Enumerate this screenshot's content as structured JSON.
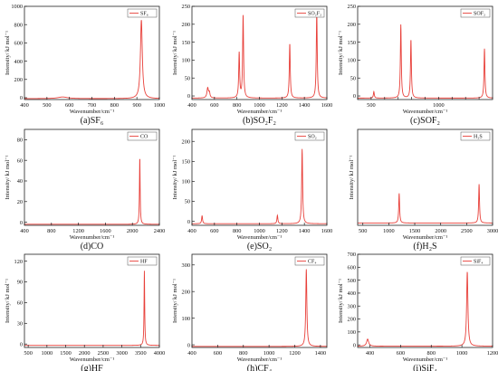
{
  "figure": {
    "xlabel": "Wavenumber/cm⁻¹",
    "ylabel": "Intensity/ kJ mol⁻¹",
    "line_color": "#e8403a",
    "axis_color": "#222222"
  },
  "chart_data": [
    {
      "type": "line",
      "panel": "(a)",
      "caption": "(a)SF₆",
      "legend": "SF₆",
      "xlim": [
        400,
        1000
      ],
      "xticks": [
        400,
        500,
        600,
        700,
        800,
        900,
        1000
      ],
      "ylim": [
        -20,
        1000
      ],
      "yticks": [
        0,
        200,
        400,
        600,
        800,
        1000
      ],
      "baseline": -10,
      "peaks": [
        {
          "x": 570,
          "y": 18,
          "w": 26
        },
        {
          "x": 920,
          "y": 860,
          "w": 5
        }
      ]
    },
    {
      "type": "line",
      "panel": "(b)",
      "caption": "(b)SO₂F₂",
      "legend": "SO₂F₂",
      "xlim": [
        400,
        1600
      ],
      "xticks": [
        400,
        600,
        800,
        1000,
        1200,
        1400,
        1600
      ],
      "ylim": [
        -10,
        250
      ],
      "yticks": [
        0,
        50,
        100,
        150,
        200,
        250
      ],
      "baseline": -6,
      "peaks": [
        {
          "x": 540,
          "y": 28,
          "w": 8
        },
        {
          "x": 555,
          "y": 14,
          "w": 6
        },
        {
          "x": 820,
          "y": 125,
          "w": 5
        },
        {
          "x": 855,
          "y": 230,
          "w": 5
        },
        {
          "x": 1270,
          "y": 152,
          "w": 5
        },
        {
          "x": 1510,
          "y": 242,
          "w": 5
        }
      ]
    },
    {
      "type": "line",
      "panel": "(c)",
      "caption": "(c)SOF₂",
      "legend": "SOF₂",
      "xlim": [
        400,
        1400
      ],
      "xticks": [
        400,
        500,
        600,
        700,
        800,
        900,
        1000,
        1100,
        1200,
        1300,
        1400
      ],
      "xtick_labels": [
        "",
        "500",
        "",
        "",
        "",
        "",
        "1000",
        "",
        "",
        "",
        ""
      ],
      "ylim": [
        -10,
        250
      ],
      "yticks": [
        0,
        50,
        100,
        150,
        200,
        250
      ],
      "baseline": -6,
      "peaks": [
        {
          "x": 520,
          "y": 18,
          "w": 4
        },
        {
          "x": 720,
          "y": 205,
          "w": 4
        },
        {
          "x": 795,
          "y": 163,
          "w": 4
        },
        {
          "x": 1340,
          "y": 138,
          "w": 4
        }
      ]
    },
    {
      "type": "line",
      "panel": "(d)",
      "caption": "(d)CO",
      "legend": "CO",
      "xlim": [
        400,
        2400
      ],
      "xticks": [
        400,
        800,
        1200,
        1600,
        2000,
        2400
      ],
      "ylim": [
        -3,
        90
      ],
      "yticks": [
        0,
        20,
        40,
        60,
        80
      ],
      "baseline": -2,
      "peaks": [
        {
          "x": 2110,
          "y": 65,
          "w": 6
        }
      ]
    },
    {
      "type": "line",
      "panel": "(e)",
      "caption": "(e)SO₂",
      "legend": "SO₂",
      "xlim": [
        400,
        1600
      ],
      "xticks": [
        400,
        600,
        800,
        1000,
        1200,
        1400,
        1600
      ],
      "ylim": [
        -10,
        230
      ],
      "yticks": [
        0,
        50,
        100,
        150,
        200
      ],
      "baseline": -6,
      "peaks": [
        {
          "x": 490,
          "y": 20,
          "w": 5
        },
        {
          "x": 1160,
          "y": 21,
          "w": 5
        },
        {
          "x": 1380,
          "y": 187,
          "w": 5
        }
      ]
    },
    {
      "type": "line",
      "panel": "(f)",
      "caption": "(f)H₂S",
      "legend": "H₂S",
      "xlim": [
        400,
        3000
      ],
      "xticks": [
        500,
        1000,
        1500,
        2000,
        2500,
        3000
      ],
      "ylim": [
        -0.02,
        0.4
      ],
      "yticks": [],
      "baseline": -0.01,
      "peaks": [
        {
          "x": 1200,
          "y": 0.13,
          "w": 10
        },
        {
          "x": 2740,
          "y": 0.17,
          "w": 10
        }
      ]
    },
    {
      "type": "line",
      "panel": "(g)",
      "caption": "(g)HF",
      "legend": "HF",
      "xlim": [
        400,
        4000
      ],
      "xticks": [
        500,
        1000,
        1500,
        2000,
        2500,
        3000,
        3500,
        4000
      ],
      "ylim": [
        -5,
        130
      ],
      "yticks": [
        0,
        30,
        60,
        90,
        120
      ],
      "baseline": -2,
      "peaks": [
        {
          "x": 3600,
          "y": 108,
          "w": 10
        }
      ]
    },
    {
      "type": "line",
      "panel": "(h)",
      "caption": "(h)CF₄",
      "legend": "CF₄",
      "xlim": [
        400,
        1450
      ],
      "xticks": [
        400,
        600,
        800,
        1000,
        1200,
        1400
      ],
      "ylim": [
        -10,
        340
      ],
      "yticks": [
        0,
        100,
        200,
        300
      ],
      "baseline": -6,
      "peaks": [
        {
          "x": 1290,
          "y": 290,
          "w": 5
        }
      ]
    },
    {
      "type": "line",
      "panel": "(i)",
      "caption": "(i)SiF₄",
      "legend": "SiF₄",
      "xlim": [
        320,
        1200
      ],
      "xticks": [
        400,
        600,
        800,
        1000,
        1200
      ],
      "ylim": [
        -20,
        700
      ],
      "yticks": [
        0,
        100,
        200,
        300,
        400,
        500,
        600,
        700
      ],
      "baseline": -10,
      "peaks": [
        {
          "x": 385,
          "y": 55,
          "w": 8
        },
        {
          "x": 1035,
          "y": 575,
          "w": 5
        }
      ]
    }
  ]
}
